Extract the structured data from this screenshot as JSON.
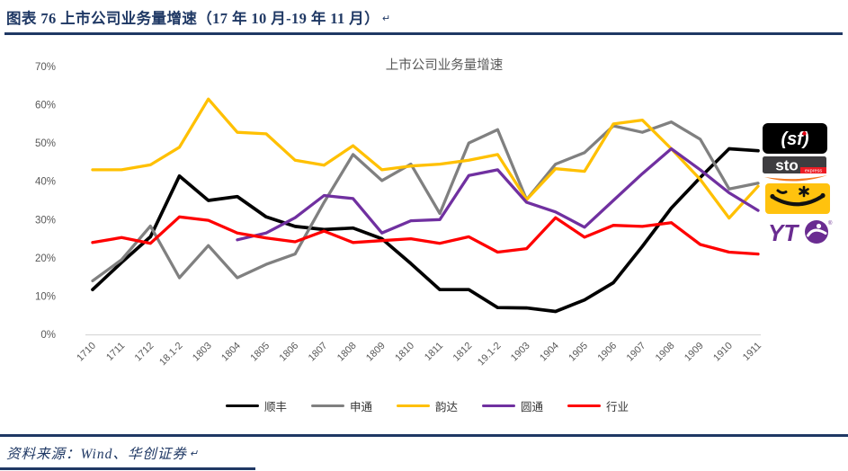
{
  "page": {
    "figure_label": "图表 76 上市公司业务量增速（17 年 10 月-19 年 11 月）",
    "return_mark": "↵",
    "source_text": "资料来源：Wind、华创证券"
  },
  "colors": {
    "heading_navy": "#1F3864",
    "axis_text_gray": "#595959",
    "axis_line_gray": "#D9D9D9",
    "sf_black": "#000000",
    "sto_gray": "#808080",
    "yunda_gold": "#FFC000",
    "yto_purple": "#7030A0",
    "industry_red": "#FF0000"
  },
  "chart_data": {
    "type": "line",
    "title": "上市公司业务量增速",
    "grid": false,
    "legend_position": "bottom",
    "ylim": [
      0,
      70
    ],
    "y_ticks": [
      "0%",
      "10%",
      "20%",
      "30%",
      "40%",
      "50%",
      "60%",
      "70%"
    ],
    "categories": [
      "1710",
      "1711",
      "1712",
      "18.1-2",
      "1803",
      "1804",
      "1805",
      "1806",
      "1807",
      "1808",
      "1809",
      "1810",
      "1811",
      "1812",
      "19.1-2",
      "1903",
      "1904",
      "1905",
      "1906",
      "1907",
      "1908",
      "1909",
      "1910",
      "1911"
    ],
    "series": [
      {
        "id": "sf",
        "name": "顺丰",
        "color": "#000000",
        "width": 3.7,
        "values": [
          11.7,
          18.8,
          25.5,
          41.4,
          35,
          36,
          30.7,
          28.2,
          27.4,
          27.8,
          25,
          18.5,
          11.7,
          11.7,
          7,
          6.9,
          6,
          9,
          13.5,
          23,
          33,
          41,
          48.5,
          48
        ]
      },
      {
        "id": "sto",
        "name": "申通",
        "color": "#808080",
        "width": 3.3,
        "values": [
          14,
          19.5,
          28.3,
          14.8,
          23.2,
          14.8,
          18.3,
          21,
          34.5,
          47,
          40.2,
          44.5,
          31.6,
          50,
          53.5,
          35.2,
          44.5,
          47.5,
          54.5,
          52.8,
          55.5,
          51,
          38,
          39.5
        ]
      },
      {
        "id": "yunda",
        "name": "韵达",
        "color": "#FFC000",
        "width": 3.3,
        "values": [
          43,
          43,
          44.3,
          48.9,
          61.5,
          52.8,
          52.4,
          45.5,
          44.2,
          49.3,
          43,
          44,
          44.5,
          45.5,
          47,
          35.2,
          43.3,
          42.6,
          55,
          56,
          48.5,
          40.5,
          30.4,
          38.7
        ]
      },
      {
        "id": "yto",
        "name": "圆通",
        "color": "#7030A0",
        "width": 3.3,
        "values": [
          null,
          null,
          null,
          null,
          null,
          24.7,
          26.5,
          30.5,
          36.3,
          35.5,
          26.5,
          29.7,
          30,
          41.5,
          43,
          34.5,
          32,
          28,
          35,
          42,
          48.5,
          43,
          37,
          32.4
        ]
      },
      {
        "id": "industry",
        "name": "行业",
        "color": "#FF0000",
        "width": 3.3,
        "values": [
          24,
          25.3,
          23.8,
          30.7,
          29.8,
          26.5,
          25.2,
          24.2,
          27,
          24,
          24.5,
          25,
          23.8,
          25.5,
          21.5,
          22.4,
          30.5,
          25.4,
          28.5,
          28.2,
          29.2,
          23.5,
          21.5,
          21
        ]
      }
    ]
  },
  "logos": {
    "sf_text": "(sf)",
    "sto_text": "sto",
    "sto_sub_text": "express",
    "yto_text": "YT",
    "yto_reg_mark": "®"
  }
}
